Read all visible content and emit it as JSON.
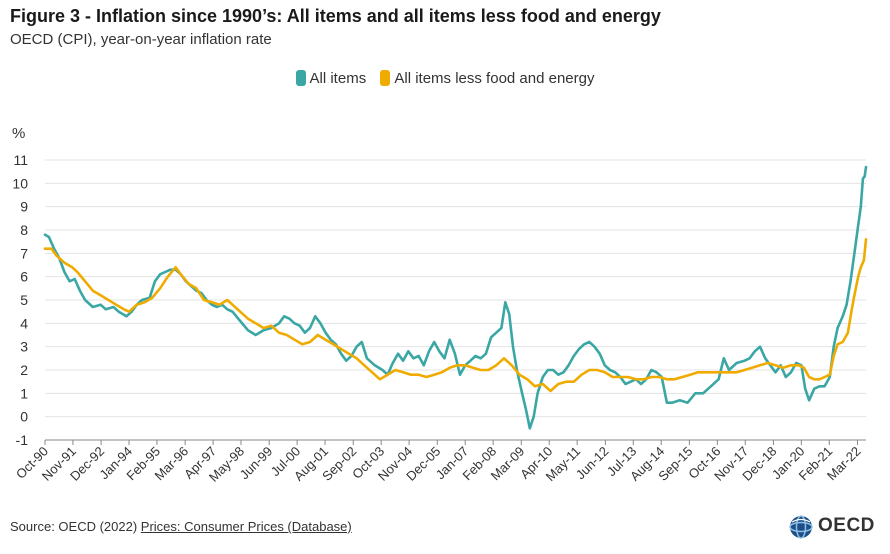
{
  "header": {
    "title": "Figure 3 - Inflation since 1990’s: All items and all items less food and energy",
    "subtitle": "OECD (CPI), year-on-year inflation rate"
  },
  "unit_label": "%",
  "source": {
    "prefix": "Source: OECD (2022) ",
    "link_text": "Prices: Consumer Prices (Database)"
  },
  "logo": {
    "text": "OECD",
    "icon": "globe-icon"
  },
  "colors": {
    "all_items": "#3aa7a5",
    "core": "#f0ab00"
  },
  "chart_data": {
    "type": "line",
    "ylabel": "%",
    "ylim": [
      -1,
      11
    ],
    "yticks": [
      -1,
      0,
      1,
      2,
      3,
      4,
      5,
      6,
      7,
      8,
      9,
      10,
      11
    ],
    "xlim": [
      1990.75,
      2022.5
    ],
    "xticks": [
      {
        "label": "Oct-90",
        "x": 1990.75
      },
      {
        "label": "Nov-91",
        "x": 1991.83
      },
      {
        "label": "Dec-92",
        "x": 1992.92
      },
      {
        "label": "Jan-94",
        "x": 1994.0
      },
      {
        "label": "Feb-95",
        "x": 1995.08
      },
      {
        "label": "Mar-96",
        "x": 1996.17
      },
      {
        "label": "Apr-97",
        "x": 1997.25
      },
      {
        "label": "May-98",
        "x": 1998.33
      },
      {
        "label": "Jun-99",
        "x": 1999.42
      },
      {
        "label": "Jul-00",
        "x": 2000.5
      },
      {
        "label": "Aug-01",
        "x": 2001.58
      },
      {
        "label": "Sep-02",
        "x": 2002.67
      },
      {
        "label": "Oct-03",
        "x": 2003.75
      },
      {
        "label": "Nov-04",
        "x": 2004.83
      },
      {
        "label": "Dec-05",
        "x": 2005.92
      },
      {
        "label": "Jan-07",
        "x": 2007.0
      },
      {
        "label": "Feb-08",
        "x": 2008.08
      },
      {
        "label": "Mar-09",
        "x": 2009.17
      },
      {
        "label": "Apr-10",
        "x": 2010.25
      },
      {
        "label": "May-11",
        "x": 2011.33
      },
      {
        "label": "Jun-12",
        "x": 2012.42
      },
      {
        "label": "Jul-13",
        "x": 2013.5
      },
      {
        "label": "Aug-14",
        "x": 2014.58
      },
      {
        "label": "Sep-15",
        "x": 2015.67
      },
      {
        "label": "Oct-16",
        "x": 2016.75
      },
      {
        "label": "Nov-17",
        "x": 2017.83
      },
      {
        "label": "Dec-18",
        "x": 2018.92
      },
      {
        "label": "Jan-20",
        "x": 2020.0
      },
      {
        "label": "Feb-21",
        "x": 2021.08
      },
      {
        "label": "Mar-22",
        "x": 2022.17
      }
    ],
    "grid": true,
    "legend_position": "top-center",
    "series": [
      {
        "name": "All items",
        "color": "#3aa7a5",
        "points": [
          [
            1990.75,
            7.8
          ],
          [
            1990.9,
            7.7
          ],
          [
            1991.1,
            7.2
          ],
          [
            1991.3,
            6.8
          ],
          [
            1991.5,
            6.2
          ],
          [
            1991.7,
            5.8
          ],
          [
            1991.9,
            5.9
          ],
          [
            1992.1,
            5.4
          ],
          [
            1992.3,
            5.0
          ],
          [
            1992.6,
            4.7
          ],
          [
            1992.9,
            4.8
          ],
          [
            1993.1,
            4.6
          ],
          [
            1993.4,
            4.7
          ],
          [
            1993.6,
            4.5
          ],
          [
            1993.9,
            4.3
          ],
          [
            1994.1,
            4.5
          ],
          [
            1994.3,
            4.8
          ],
          [
            1994.5,
            5.0
          ],
          [
            1994.8,
            5.1
          ],
          [
            1995.0,
            5.8
          ],
          [
            1995.2,
            6.1
          ],
          [
            1995.4,
            6.2
          ],
          [
            1995.6,
            6.3
          ],
          [
            1995.8,
            6.3
          ],
          [
            1996.0,
            6.1
          ],
          [
            1996.2,
            5.8
          ],
          [
            1996.4,
            5.6
          ],
          [
            1996.6,
            5.4
          ],
          [
            1996.8,
            5.3
          ],
          [
            1997.0,
            5.0
          ],
          [
            1997.2,
            4.8
          ],
          [
            1997.4,
            4.7
          ],
          [
            1997.6,
            4.8
          ],
          [
            1997.8,
            4.6
          ],
          [
            1998.0,
            4.5
          ],
          [
            1998.3,
            4.1
          ],
          [
            1998.6,
            3.7
          ],
          [
            1998.9,
            3.5
          ],
          [
            1999.2,
            3.7
          ],
          [
            1999.5,
            3.8
          ],
          [
            1999.8,
            4.0
          ],
          [
            2000.0,
            4.3
          ],
          [
            2000.2,
            4.2
          ],
          [
            2000.4,
            4.0
          ],
          [
            2000.6,
            3.9
          ],
          [
            2000.8,
            3.6
          ],
          [
            2001.0,
            3.8
          ],
          [
            2001.2,
            4.3
          ],
          [
            2001.4,
            4.0
          ],
          [
            2001.6,
            3.6
          ],
          [
            2001.8,
            3.3
          ],
          [
            2002.0,
            3.1
          ],
          [
            2002.2,
            2.7
          ],
          [
            2002.4,
            2.4
          ],
          [
            2002.6,
            2.6
          ],
          [
            2002.8,
            3.0
          ],
          [
            2003.0,
            3.2
          ],
          [
            2003.2,
            2.5
          ],
          [
            2003.5,
            2.2
          ],
          [
            2003.8,
            2.0
          ],
          [
            2004.0,
            1.8
          ],
          [
            2004.2,
            2.3
          ],
          [
            2004.4,
            2.7
          ],
          [
            2004.6,
            2.4
          ],
          [
            2004.8,
            2.8
          ],
          [
            2005.0,
            2.5
          ],
          [
            2005.2,
            2.6
          ],
          [
            2005.4,
            2.2
          ],
          [
            2005.6,
            2.8
          ],
          [
            2005.8,
            3.2
          ],
          [
            2006.0,
            2.8
          ],
          [
            2006.2,
            2.5
          ],
          [
            2006.4,
            3.3
          ],
          [
            2006.6,
            2.7
          ],
          [
            2006.8,
            1.8
          ],
          [
            2007.0,
            2.2
          ],
          [
            2007.2,
            2.4
          ],
          [
            2007.4,
            2.6
          ],
          [
            2007.6,
            2.5
          ],
          [
            2007.8,
            2.7
          ],
          [
            2008.0,
            3.4
          ],
          [
            2008.2,
            3.6
          ],
          [
            2008.4,
            3.8
          ],
          [
            2008.55,
            4.9
          ],
          [
            2008.7,
            4.4
          ],
          [
            2008.85,
            3.0
          ],
          [
            2009.0,
            2.0
          ],
          [
            2009.2,
            1.0
          ],
          [
            2009.35,
            0.3
          ],
          [
            2009.5,
            -0.5
          ],
          [
            2009.65,
            0.0
          ],
          [
            2009.8,
            1.0
          ],
          [
            2010.0,
            1.7
          ],
          [
            2010.2,
            2.0
          ],
          [
            2010.4,
            2.0
          ],
          [
            2010.6,
            1.8
          ],
          [
            2010.8,
            1.9
          ],
          [
            2011.0,
            2.2
          ],
          [
            2011.2,
            2.6
          ],
          [
            2011.4,
            2.9
          ],
          [
            2011.6,
            3.1
          ],
          [
            2011.8,
            3.2
          ],
          [
            2012.0,
            3.0
          ],
          [
            2012.2,
            2.7
          ],
          [
            2012.4,
            2.2
          ],
          [
            2012.6,
            2.0
          ],
          [
            2012.8,
            1.9
          ],
          [
            2013.0,
            1.7
          ],
          [
            2013.2,
            1.4
          ],
          [
            2013.4,
            1.5
          ],
          [
            2013.6,
            1.6
          ],
          [
            2013.8,
            1.4
          ],
          [
            2014.0,
            1.6
          ],
          [
            2014.2,
            2.0
          ],
          [
            2014.4,
            1.9
          ],
          [
            2014.6,
            1.7
          ],
          [
            2014.8,
            0.6
          ],
          [
            2015.0,
            0.6
          ],
          [
            2015.3,
            0.7
          ],
          [
            2015.6,
            0.6
          ],
          [
            2015.9,
            1.0
          ],
          [
            2016.2,
            1.0
          ],
          [
            2016.5,
            1.3
          ],
          [
            2016.8,
            1.6
          ],
          [
            2017.0,
            2.5
          ],
          [
            2017.2,
            2.0
          ],
          [
            2017.5,
            2.3
          ],
          [
            2017.8,
            2.4
          ],
          [
            2018.0,
            2.5
          ],
          [
            2018.2,
            2.8
          ],
          [
            2018.4,
            3.0
          ],
          [
            2018.6,
            2.5
          ],
          [
            2018.8,
            2.2
          ],
          [
            2019.0,
            1.9
          ],
          [
            2019.2,
            2.2
          ],
          [
            2019.4,
            1.7
          ],
          [
            2019.6,
            1.9
          ],
          [
            2019.8,
            2.3
          ],
          [
            2020.0,
            2.2
          ],
          [
            2020.15,
            1.2
          ],
          [
            2020.3,
            0.7
          ],
          [
            2020.5,
            1.2
          ],
          [
            2020.7,
            1.3
          ],
          [
            2020.9,
            1.3
          ],
          [
            2021.1,
            1.7
          ],
          [
            2021.25,
            3.0
          ],
          [
            2021.4,
            3.8
          ],
          [
            2021.6,
            4.3
          ],
          [
            2021.75,
            4.8
          ],
          [
            2021.9,
            5.8
          ],
          [
            2022.05,
            7.0
          ],
          [
            2022.2,
            8.2
          ],
          [
            2022.3,
            9.0
          ],
          [
            2022.38,
            10.2
          ],
          [
            2022.45,
            10.3
          ],
          [
            2022.5,
            10.7
          ]
        ]
      },
      {
        "name": "All items less food and energy",
        "color": "#f0ab00",
        "points": [
          [
            1990.75,
            7.2
          ],
          [
            1991.0,
            7.2
          ],
          [
            1991.2,
            6.9
          ],
          [
            1991.5,
            6.6
          ],
          [
            1991.8,
            6.4
          ],
          [
            1992.0,
            6.2
          ],
          [
            1992.3,
            5.8
          ],
          [
            1992.6,
            5.4
          ],
          [
            1992.9,
            5.2
          ],
          [
            1993.2,
            5.0
          ],
          [
            1993.5,
            4.8
          ],
          [
            1993.8,
            4.6
          ],
          [
            1994.0,
            4.5
          ],
          [
            1994.3,
            4.8
          ],
          [
            1994.6,
            4.9
          ],
          [
            1994.9,
            5.1
          ],
          [
            1995.2,
            5.5
          ],
          [
            1995.5,
            6.0
          ],
          [
            1995.8,
            6.4
          ],
          [
            1996.0,
            6.1
          ],
          [
            1996.3,
            5.7
          ],
          [
            1996.6,
            5.5
          ],
          [
            1996.9,
            5.0
          ],
          [
            1997.2,
            4.9
          ],
          [
            1997.5,
            4.8
          ],
          [
            1997.8,
            5.0
          ],
          [
            1998.0,
            4.8
          ],
          [
            1998.3,
            4.5
          ],
          [
            1998.6,
            4.2
          ],
          [
            1998.9,
            4.0
          ],
          [
            1999.2,
            3.8
          ],
          [
            1999.5,
            3.9
          ],
          [
            1999.8,
            3.6
          ],
          [
            2000.1,
            3.5
          ],
          [
            2000.4,
            3.3
          ],
          [
            2000.7,
            3.1
          ],
          [
            2001.0,
            3.2
          ],
          [
            2001.3,
            3.5
          ],
          [
            2001.6,
            3.3
          ],
          [
            2001.9,
            3.1
          ],
          [
            2002.2,
            2.9
          ],
          [
            2002.5,
            2.7
          ],
          [
            2002.8,
            2.5
          ],
          [
            2003.1,
            2.2
          ],
          [
            2003.4,
            1.9
          ],
          [
            2003.7,
            1.6
          ],
          [
            2004.0,
            1.8
          ],
          [
            2004.3,
            2.0
          ],
          [
            2004.6,
            1.9
          ],
          [
            2004.9,
            1.8
          ],
          [
            2005.2,
            1.8
          ],
          [
            2005.5,
            1.7
          ],
          [
            2005.8,
            1.8
          ],
          [
            2006.1,
            1.9
          ],
          [
            2006.4,
            2.1
          ],
          [
            2006.7,
            2.2
          ],
          [
            2007.0,
            2.2
          ],
          [
            2007.3,
            2.1
          ],
          [
            2007.6,
            2.0
          ],
          [
            2007.9,
            2.0
          ],
          [
            2008.2,
            2.2
          ],
          [
            2008.5,
            2.5
          ],
          [
            2008.8,
            2.2
          ],
          [
            2009.1,
            1.8
          ],
          [
            2009.4,
            1.6
          ],
          [
            2009.7,
            1.3
          ],
          [
            2010.0,
            1.4
          ],
          [
            2010.3,
            1.1
          ],
          [
            2010.6,
            1.4
          ],
          [
            2010.9,
            1.5
          ],
          [
            2011.2,
            1.5
          ],
          [
            2011.5,
            1.8
          ],
          [
            2011.8,
            2.0
          ],
          [
            2012.1,
            2.0
          ],
          [
            2012.4,
            1.9
          ],
          [
            2012.7,
            1.7
          ],
          [
            2013.0,
            1.7
          ],
          [
            2013.3,
            1.7
          ],
          [
            2013.6,
            1.6
          ],
          [
            2013.9,
            1.6
          ],
          [
            2014.2,
            1.7
          ],
          [
            2014.5,
            1.7
          ],
          [
            2014.8,
            1.6
          ],
          [
            2015.1,
            1.6
          ],
          [
            2015.4,
            1.7
          ],
          [
            2015.7,
            1.8
          ],
          [
            2016.0,
            1.9
          ],
          [
            2016.3,
            1.9
          ],
          [
            2016.6,
            1.9
          ],
          [
            2016.9,
            1.9
          ],
          [
            2017.2,
            1.9
          ],
          [
            2017.5,
            1.9
          ],
          [
            2017.8,
            2.0
          ],
          [
            2018.1,
            2.1
          ],
          [
            2018.4,
            2.2
          ],
          [
            2018.7,
            2.3
          ],
          [
            2019.0,
            2.2
          ],
          [
            2019.3,
            2.1
          ],
          [
            2019.6,
            2.2
          ],
          [
            2019.9,
            2.2
          ],
          [
            2020.1,
            2.1
          ],
          [
            2020.3,
            1.7
          ],
          [
            2020.5,
            1.6
          ],
          [
            2020.7,
            1.6
          ],
          [
            2020.9,
            1.7
          ],
          [
            2021.1,
            1.8
          ],
          [
            2021.25,
            2.6
          ],
          [
            2021.4,
            3.1
          ],
          [
            2021.6,
            3.2
          ],
          [
            2021.8,
            3.6
          ],
          [
            2021.95,
            4.6
          ],
          [
            2022.05,
            5.2
          ],
          [
            2022.2,
            6.0
          ],
          [
            2022.3,
            6.4
          ],
          [
            2022.42,
            6.7
          ],
          [
            2022.5,
            7.6
          ]
        ]
      }
    ]
  }
}
